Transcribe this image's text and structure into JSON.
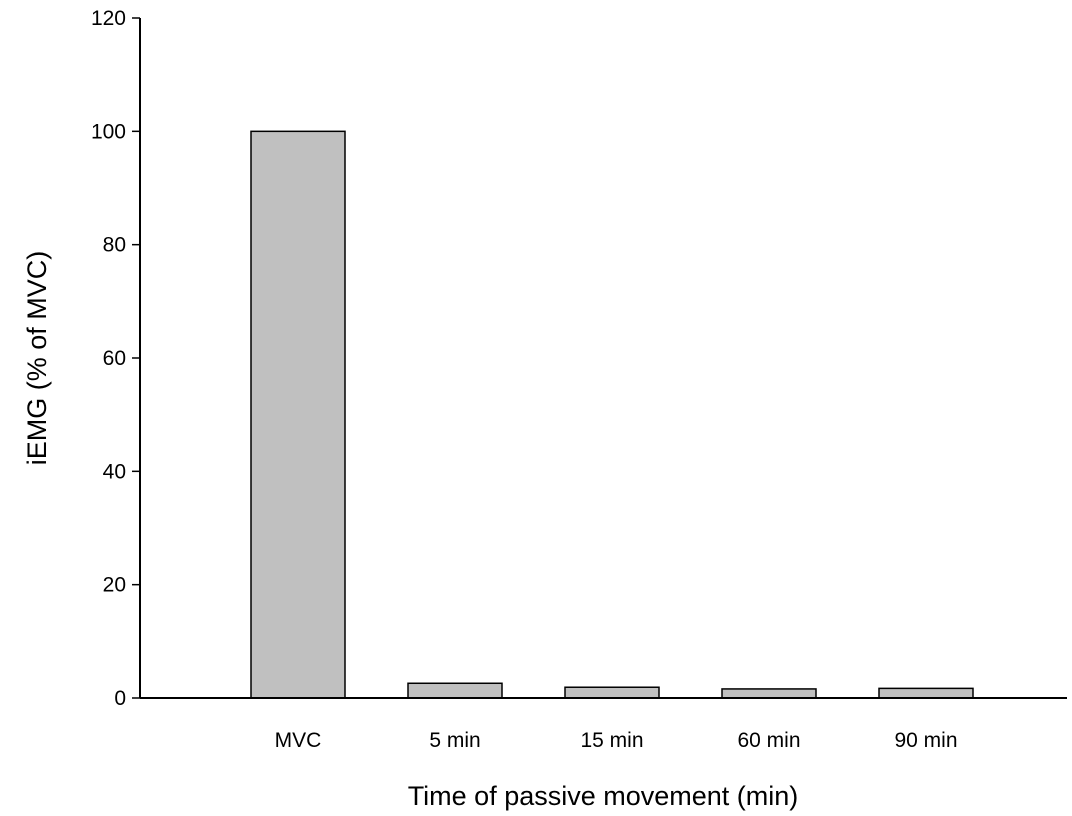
{
  "chart_data": {
    "type": "bar",
    "title": "",
    "xlabel": "Time of passive movement (min)",
    "ylabel": "iEMG (% of MVC)",
    "categories": [
      "MVC",
      "5 min",
      "15 min",
      "60 min",
      "90 min"
    ],
    "values": [
      100,
      2.6,
      1.9,
      1.6,
      1.7
    ],
    "ylim": [
      0,
      120
    ],
    "yticks": [
      0,
      20,
      40,
      60,
      80,
      100,
      120
    ],
    "grid": false,
    "legend": "none",
    "bar_color": "#c0c0c0"
  }
}
